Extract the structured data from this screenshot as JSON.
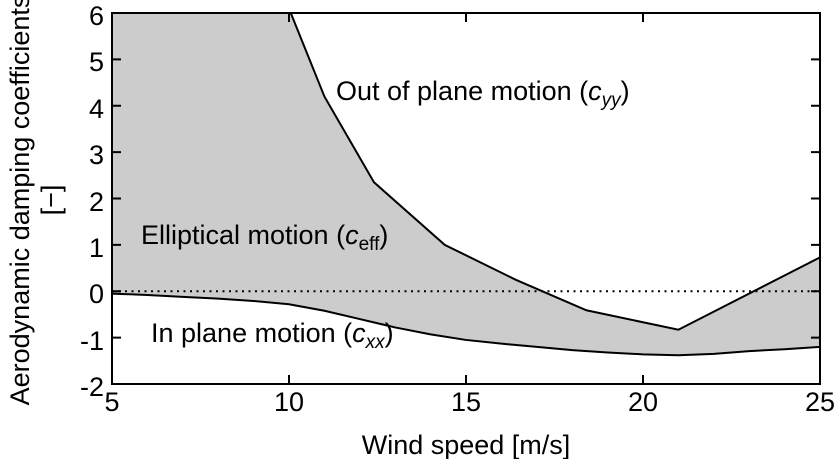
{
  "chart_data": {
    "type": "area",
    "title": "",
    "xlabel": "Wind speed [m/s]",
    "ylabel": "Aerodynamic damping coefficients [−]",
    "ylabel_lines": [
      "Aerodynamic damping coefficients",
      "[−]"
    ],
    "xlim": [
      5,
      25
    ],
    "ylim": [
      -2,
      6
    ],
    "x_ticks": [
      5,
      10,
      15,
      20,
      25
    ],
    "y_ticks": [
      -2,
      -1,
      0,
      1,
      2,
      3,
      4,
      5,
      6
    ],
    "grid": false,
    "legend": "none (labels annotated inside plot)",
    "zero_line": {
      "y": 0,
      "style": "dotted"
    },
    "line_color": "#000000",
    "fill_color": "#cccccc",
    "background_color": "#ffffff",
    "series": [
      {
        "name": "out_of_plane_cyy",
        "label": "Out of plane motion (c_yy)",
        "clipped_above_ymax_below_x": 10.05,
        "points": [
          [
            10.05,
            6.0
          ],
          [
            11.0,
            4.2
          ],
          [
            12.4,
            2.35
          ],
          [
            14.4,
            1.0
          ],
          [
            16.4,
            0.25
          ],
          [
            18.4,
            -0.41
          ],
          [
            21.0,
            -0.83
          ],
          [
            25.0,
            0.73
          ]
        ]
      },
      {
        "name": "in_plane_cxx",
        "label": "In plane motion (c_xx)",
        "points": [
          [
            5,
            -0.05
          ],
          [
            6,
            -0.08
          ],
          [
            7,
            -0.12
          ],
          [
            8,
            -0.16
          ],
          [
            9,
            -0.21
          ],
          [
            10,
            -0.28
          ],
          [
            11,
            -0.42
          ],
          [
            12,
            -0.6
          ],
          [
            13,
            -0.78
          ],
          [
            14,
            -0.93
          ],
          [
            15,
            -1.05
          ],
          [
            16,
            -1.13
          ],
          [
            17,
            -1.2
          ],
          [
            18,
            -1.27
          ],
          [
            19,
            -1.32
          ],
          [
            20,
            -1.36
          ],
          [
            21,
            -1.38
          ],
          [
            22,
            -1.35
          ],
          [
            23,
            -1.29
          ],
          [
            24,
            -1.25
          ],
          [
            25,
            -1.2
          ]
        ]
      }
    ],
    "shaded_region": "gray area between the two curves, labeled Elliptical motion (c_eff)",
    "annotations": {
      "out_of_plane": {
        "prefix": "Out of plane motion (",
        "sym": "c",
        "sub": "yy",
        "sub_italic": true,
        "suffix": ")",
        "plain": "Out of plane motion (cyy)"
      },
      "elliptical": {
        "prefix": "Elliptical motion (",
        "sym": "c",
        "sub": "eff",
        "sub_italic": false,
        "suffix": ")",
        "plain": "Elliptical motion (ceff)"
      },
      "in_plane": {
        "prefix": "In plane motion (",
        "sym": "c",
        "sub": "xx",
        "sub_italic": true,
        "suffix": ")",
        "plain": "In plane motion (cxx)"
      }
    }
  }
}
